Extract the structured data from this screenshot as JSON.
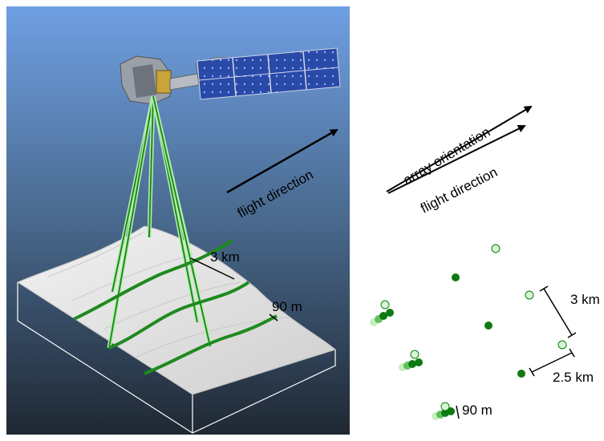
{
  "left_panel": {
    "flight_direction": "flight direction",
    "beam_spacing": "3 km",
    "track_width": "90 m"
  },
  "right_panel": {
    "array_orientation": "array orientation",
    "flight_direction": "flight direction",
    "pair_spacing": "3 km",
    "beam_spacing": "2.5 km",
    "track_width": "90 m"
  },
  "colors": {
    "sky_top": "#6f9fe3",
    "sky_bottom": "#1f2833",
    "beam_dark": "#1e8a1e",
    "beam_light": "#b8f0b0",
    "dot_dark": "#0f7a12",
    "dot_light": "#d6f7d2",
    "terrain": "#e4e4e4"
  }
}
